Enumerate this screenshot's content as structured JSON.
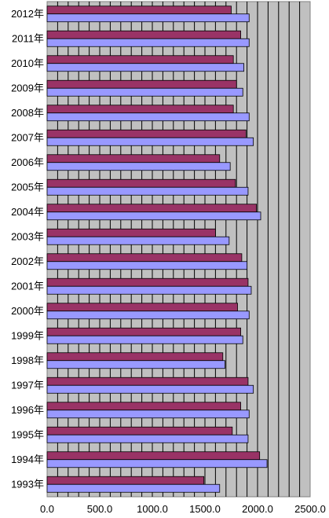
{
  "chart_data": {
    "type": "bar",
    "orientation": "horizontal",
    "title": "",
    "xlabel": "",
    "ylabel": "",
    "xlim": [
      0,
      2500
    ],
    "x_ticks": [
      "0.0",
      "500.0",
      "1000.0",
      "1500.0",
      "2000.0",
      "2500.0"
    ],
    "categories": [
      "2012年",
      "2011年",
      "2010年",
      "2009年",
      "2008年",
      "2007年",
      "2006年",
      "2005年",
      "2004年",
      "2003年",
      "2002年",
      "2001年",
      "2000年",
      "1999年",
      "1998年",
      "1997年",
      "1996年",
      "1995年",
      "1994年",
      "1993年"
    ],
    "series": [
      {
        "color": "#993366",
        "values": [
          1750,
          1840,
          1770,
          1800,
          1770,
          1890,
          1640,
          1790,
          1990,
          1600,
          1850,
          1910,
          1810,
          1840,
          1670,
          1910,
          1840,
          1760,
          2020,
          1490
        ]
      },
      {
        "color": "#9999ff",
        "values": [
          1920,
          1920,
          1870,
          1860,
          1920,
          1960,
          1740,
          1910,
          2030,
          1730,
          1900,
          1940,
          1920,
          1860,
          1690,
          1960,
          1920,
          1910,
          2090,
          1640
        ]
      }
    ],
    "grid": true,
    "plot_background": "#c0c0c0",
    "gridline_color": "#000000"
  }
}
